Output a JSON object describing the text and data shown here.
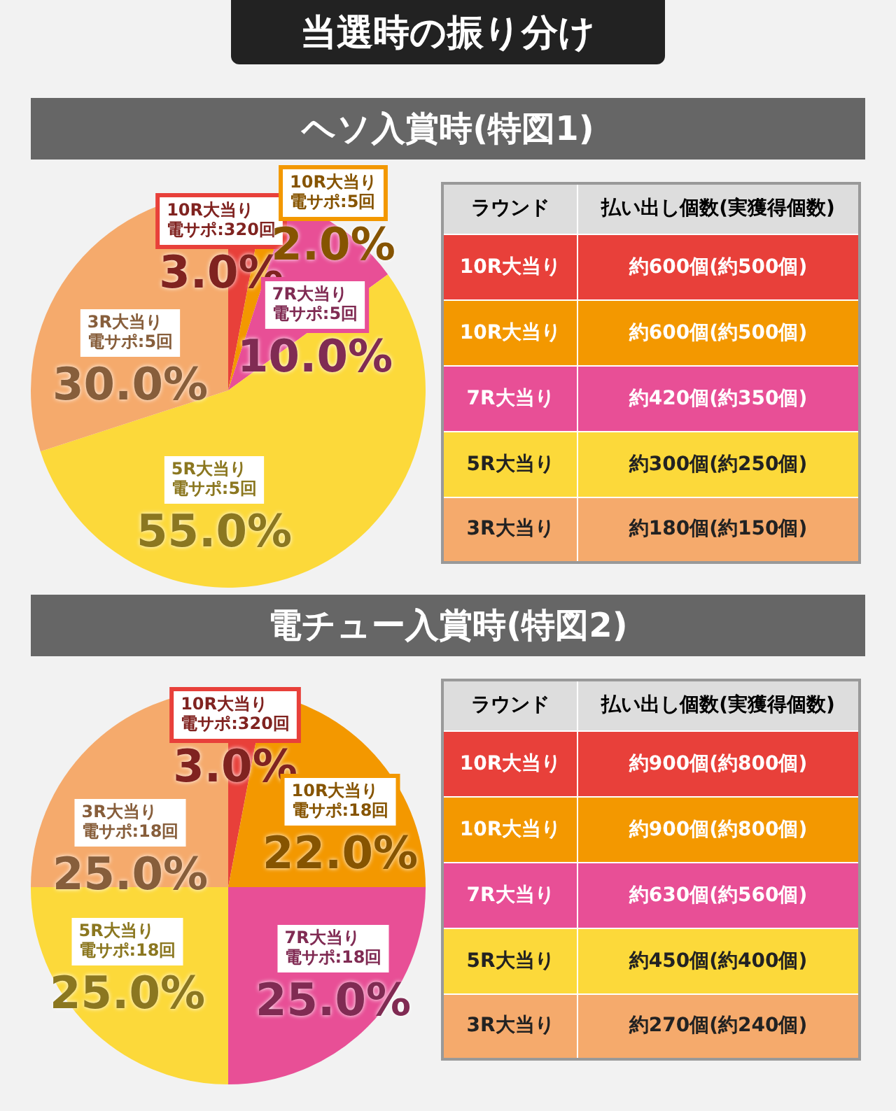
{
  "chart_data": [
    {
      "type": "other",
      "title": "当選時の振り分け"
    },
    {
      "type": "pie",
      "title": "ヘソ入賞時(特図1)",
      "categories": [
        "10R大当り電サポ:320回",
        "10R大当り電サポ:5回",
        "7R大当り電サポ:5回",
        "5R大当り電サポ:5回",
        "3R大当り電サポ:5回"
      ],
      "values": [
        3,
        2,
        10,
        55,
        30
      ],
      "colors": [
        "#e8403a",
        "#f39800",
        "#e84f96",
        "#fcd93a",
        "#f5aa6c"
      ],
      "value_labels": [
        "3.0%",
        "2.0%",
        "10.0%",
        "55.0%",
        "30.0%"
      ]
    },
    {
      "type": "other",
      "categories": [
        "10R大当り",
        "10R大当り",
        "7R大当り",
        "5R大当り",
        "3R大当り"
      ],
      "value_labels": [
        "約600個(約500個)",
        "約600個(約500個)",
        "約420個(約350個)",
        "約300個(約250個)",
        "約180個(約150個)"
      ],
      "colors": [
        "#e8403a",
        "#f39800",
        "#e84f96",
        "#fcd93a",
        "#f5aa6c"
      ],
      "annotations": [
        "ラウンド",
        "払い出し個数(実獲得個数)"
      ]
    },
    {
      "type": "pie",
      "title": "電チュー入賞時(特図2)",
      "categories": [
        "10R大当り電サポ:320回",
        "10R大当り電サポ:18回",
        "7R大当り電サポ:18回",
        "5R大当り電サポ:18回",
        "3R大当り電サポ:18回"
      ],
      "values": [
        3,
        22,
        25,
        25,
        25
      ],
      "colors": [
        "#e8403a",
        "#f39800",
        "#e84f96",
        "#fcd93a",
        "#f5aa6c"
      ],
      "value_labels": [
        "3.0%",
        "22.0%",
        "25.0%",
        "25.0%",
        "25.0%"
      ]
    },
    {
      "type": "other",
      "categories": [
        "10R大当り",
        "10R大当り",
        "7R大当り",
        "5R大当り",
        "3R大当り"
      ],
      "value_labels": [
        "約900個(約800個)",
        "約900個(約800個)",
        "約630個(約560個)",
        "約450個(約400個)",
        "約270個(約240個)"
      ],
      "colors": [
        "#e8403a",
        "#f39800",
        "#e84f96",
        "#fcd93a",
        "#f5aa6c"
      ],
      "annotations": [
        "ラウンド",
        "払い出し個数(実獲得個数)"
      ]
    }
  ]
}
